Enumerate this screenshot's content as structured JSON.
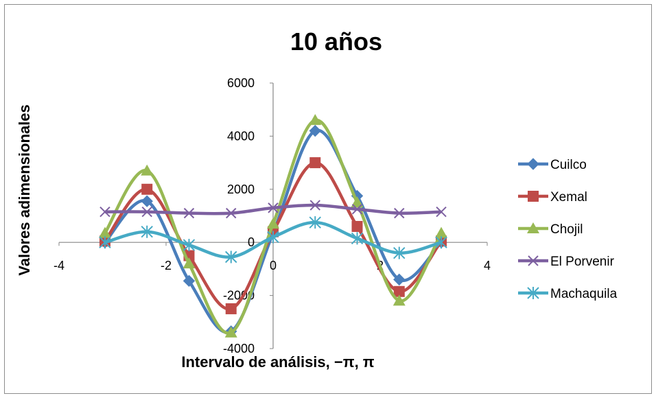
{
  "chart_data": {
    "type": "line",
    "title": "10 años",
    "xlabel": "Intervalo de análisis, −π, π",
    "ylabel": "Valores adimensionales",
    "xlim": [
      -4,
      4
    ],
    "ylim": [
      -4000,
      6000
    ],
    "xticks": [
      "-4",
      "-2",
      "0",
      "2",
      "4"
    ],
    "yticks": [
      "-4000",
      "-2000",
      "0",
      "2000",
      "4000",
      "6000"
    ],
    "x": [
      -3.1416,
      -2.3562,
      -1.5708,
      -0.7854,
      0,
      0.7854,
      1.5708,
      2.3562,
      3.1416
    ],
    "series": [
      {
        "name": "Cuilco",
        "color": "#4a7ebb",
        "marker": "diamond",
        "values": [
          0,
          1550,
          -1450,
          -3350,
          350,
          4200,
          1750,
          -1400,
          0
        ]
      },
      {
        "name": "Xemal",
        "color": "#be4b48",
        "marker": "square",
        "values": [
          50,
          2000,
          -500,
          -2500,
          400,
          3000,
          600,
          -1850,
          50
        ]
      },
      {
        "name": "Chojil",
        "color": "#98b954",
        "marker": "triangle",
        "values": [
          350,
          2700,
          -800,
          -3400,
          700,
          4600,
          1500,
          -2200,
          350
        ]
      },
      {
        "name": "El Porvenir",
        "color": "#7d60a0",
        "marker": "x",
        "values": [
          1150,
          1150,
          1100,
          1100,
          1300,
          1400,
          1250,
          1100,
          1150
        ]
      },
      {
        "name": "Machaquila",
        "color": "#46aac5",
        "marker": "star",
        "values": [
          0,
          400,
          -100,
          -550,
          200,
          750,
          150,
          -400,
          0
        ]
      }
    ],
    "legend_position": "right",
    "grid": false
  }
}
